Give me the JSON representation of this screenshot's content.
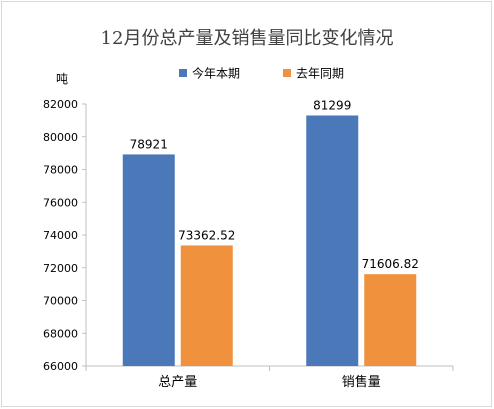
{
  "chart_data": {
    "type": "bar",
    "title": "12月份总产量及销售量同比变化情况",
    "ylabel": "吨",
    "xlabel": "",
    "categories": [
      "总产量",
      "销售量"
    ],
    "series": [
      {
        "name": "今年本期",
        "values": [
          78921,
          81299
        ],
        "labels": [
          "78921",
          "81299"
        ],
        "color": "#4a78b9"
      },
      {
        "name": "去年同期",
        "values": [
          73362.52,
          71606.82
        ],
        "labels": [
          "73362.52",
          "71606.82"
        ],
        "color": "#f0913d"
      }
    ],
    "ylim": [
      66000,
      82000
    ],
    "yticks": [
      "66000",
      "68000",
      "70000",
      "72000",
      "74000",
      "76000",
      "78000",
      "80000",
      "82000"
    ],
    "grid": false,
    "legend_position": "top-right"
  }
}
